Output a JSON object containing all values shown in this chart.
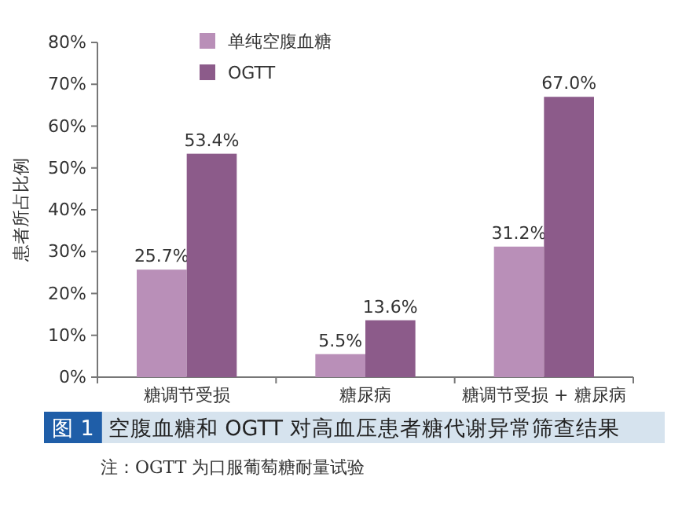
{
  "chart_data": {
    "type": "bar",
    "title": "图 1 空腹血糖和 OGTT 对高血压患者糖代谢异常筛查结果",
    "ylabel": "患者所占比例",
    "annotations": [
      "注：OGTT 为口服葡萄糖耐量试验"
    ],
    "categories": [
      "糖调节受损",
      "糖尿病",
      "糖调节受损 + 糖尿病"
    ],
    "series": [
      {
        "name": "单纯空腹血糖",
        "color": "#b98fb8",
        "values": [
          25.7,
          5.5,
          31.2
        ]
      },
      {
        "name": "OGTT",
        "color": "#8c5b8a",
        "values": [
          53.4,
          13.6,
          67.0
        ]
      }
    ],
    "value_labels": [
      [
        "25.7%",
        "5.5%",
        "31.2%"
      ],
      [
        "53.4%",
        "13.6%",
        "67.0%"
      ]
    ],
    "ylim": [
      0,
      80
    ],
    "yticks": [
      {
        "value": 0,
        "label": "0%"
      },
      {
        "value": 10,
        "label": "10%"
      },
      {
        "value": 20,
        "label": "20%"
      },
      {
        "value": 30,
        "label": "30%"
      },
      {
        "value": 40,
        "label": "40%"
      },
      {
        "value": 50,
        "label": "50%"
      },
      {
        "value": 60,
        "label": "60%"
      },
      {
        "value": 70,
        "label": "70%"
      },
      {
        "value": 80,
        "label": "80%"
      }
    ],
    "legend": "top left"
  }
}
